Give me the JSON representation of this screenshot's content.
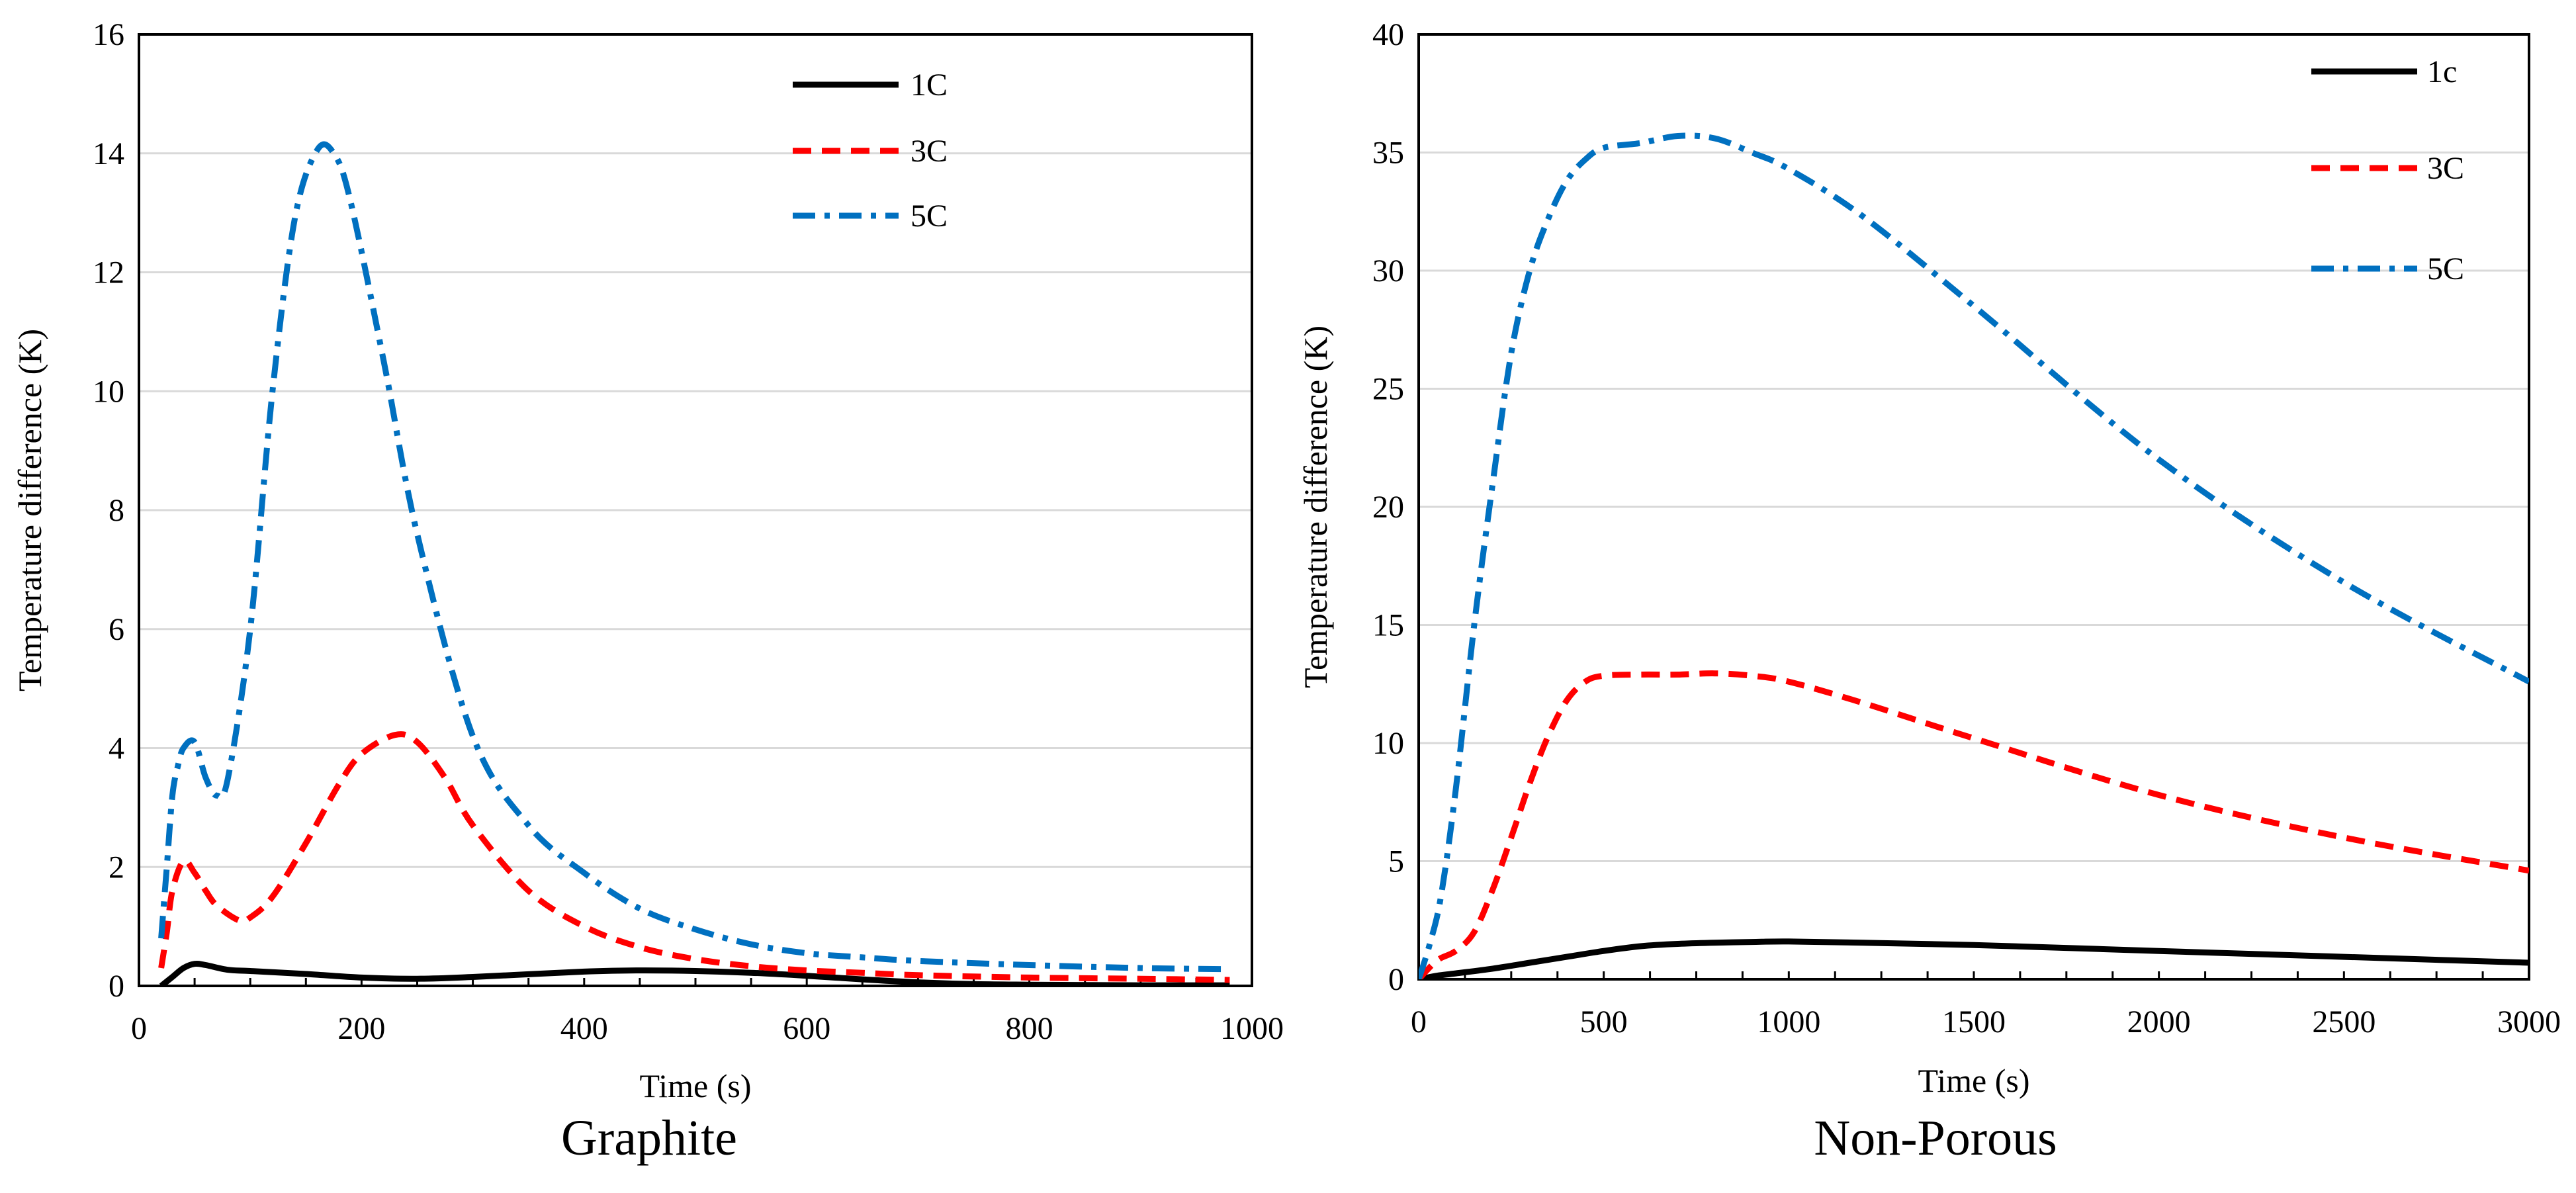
{
  "chart_data": [
    {
      "type": "line",
      "caption": "Graphite",
      "xlabel": "Time (s)",
      "ylabel": "Temperature difference (K)",
      "xlim": [
        0,
        1000
      ],
      "ylim": [
        0,
        16
      ],
      "xticks": [
        "0",
        "200",
        "400",
        "600",
        "800",
        "1000"
      ],
      "yticks": [
        "0",
        "2",
        "4",
        "6",
        "8",
        "10",
        "12",
        "14",
        "16"
      ],
      "grid": "horizontal",
      "legend_position": "top-right",
      "series": [
        {
          "name": "1C",
          "style": "solid",
          "color": "#000000",
          "x": [
            20,
            30,
            40,
            50,
            60,
            80,
            100,
            150,
            200,
            250,
            300,
            400,
            450,
            500,
            550,
            600,
            650,
            700,
            750,
            800,
            900,
            980
          ],
          "y": [
            0.0,
            0.15,
            0.3,
            0.37,
            0.35,
            0.27,
            0.25,
            0.2,
            0.14,
            0.12,
            0.15,
            0.24,
            0.26,
            0.25,
            0.22,
            0.17,
            0.11,
            0.06,
            0.03,
            0.02,
            0.01,
            0.01
          ]
        },
        {
          "name": "3C",
          "style": "dashed",
          "color": "#ff0000",
          "x": [
            20,
            25,
            30,
            40,
            50,
            60,
            70,
            90,
            100,
            120,
            150,
            180,
            200,
            230,
            250,
            275,
            300,
            350,
            400,
            450,
            500,
            550,
            600,
            650,
            700,
            800,
            900,
            980
          ],
          "y": [
            0.3,
            0.9,
            1.6,
            2.1,
            1.9,
            1.6,
            1.35,
            1.1,
            1.15,
            1.5,
            2.4,
            3.4,
            3.9,
            4.22,
            4.1,
            3.5,
            2.7,
            1.6,
            1.0,
            0.65,
            0.45,
            0.33,
            0.26,
            0.22,
            0.18,
            0.14,
            0.12,
            0.1
          ]
        },
        {
          "name": "5C",
          "style": "dashdot",
          "color": "#0070c0",
          "x": [
            20,
            25,
            30,
            35,
            40,
            50,
            60,
            70,
            80,
            100,
            120,
            140,
            160,
            175,
            190,
            220,
            250,
            300,
            350,
            400,
            450,
            500,
            550,
            600,
            650,
            700,
            800,
            900,
            980
          ],
          "y": [
            0.8,
            2.0,
            3.2,
            3.7,
            4.0,
            4.1,
            3.5,
            3.2,
            3.5,
            6.0,
            10.0,
            12.9,
            14.05,
            14.0,
            13.2,
            10.5,
            7.6,
            4.2,
            2.7,
            1.9,
            1.3,
            0.95,
            0.7,
            0.55,
            0.48,
            0.42,
            0.35,
            0.3,
            0.28
          ]
        }
      ]
    },
    {
      "type": "line",
      "caption": "Non-Porous",
      "xlabel": "Time (s)",
      "ylabel": "Temperature difference (K)",
      "xlim": [
        0,
        3000
      ],
      "ylim": [
        0,
        40
      ],
      "xticks": [
        "0",
        "500",
        "1000",
        "1500",
        "2000",
        "2500",
        "3000"
      ],
      "yticks": [
        "0",
        "5",
        "10",
        "15",
        "20",
        "25",
        "30",
        "35",
        "40"
      ],
      "grid": "horizontal",
      "legend_position": "top-right",
      "series": [
        {
          "name": "1c",
          "style": "solid",
          "color": "#000000",
          "x": [
            0,
            50,
            100,
            200,
            300,
            400,
            500,
            600,
            700,
            800,
            900,
            1000,
            1200,
            1500,
            2000,
            2500,
            3000
          ],
          "y": [
            0.0,
            0.15,
            0.25,
            0.45,
            0.7,
            0.95,
            1.2,
            1.4,
            1.5,
            1.55,
            1.58,
            1.6,
            1.55,
            1.45,
            1.2,
            0.95,
            0.7
          ]
        },
        {
          "name": "3C",
          "style": "dashed",
          "color": "#ff0000",
          "x": [
            0,
            50,
            100,
            150,
            200,
            250,
            300,
            350,
            400,
            450,
            500,
            600,
            700,
            800,
            900,
            1000,
            1200,
            1500,
            2000,
            2500,
            3000
          ],
          "y": [
            0.0,
            0.8,
            1.2,
            2.0,
            3.8,
            6.0,
            8.3,
            10.3,
            11.8,
            12.6,
            12.85,
            12.9,
            12.9,
            12.95,
            12.85,
            12.6,
            11.7,
            10.2,
            7.8,
            6.0,
            4.6
          ]
        },
        {
          "name": "5C",
          "style": "dashdot",
          "color": "#0070c0",
          "x": [
            0,
            30,
            60,
            100,
            150,
            200,
            250,
            300,
            350,
            400,
            450,
            500,
            600,
            700,
            800,
            900,
            1000,
            1200,
            1500,
            2000,
            2500,
            3000
          ],
          "y": [
            0.0,
            1.5,
            3.5,
            8.0,
            15.0,
            21.0,
            26.5,
            30.0,
            32.2,
            33.8,
            34.7,
            35.2,
            35.4,
            35.7,
            35.6,
            35.0,
            34.3,
            32.3,
            28.5,
            22.0,
            16.8,
            12.6
          ]
        }
      ]
    }
  ]
}
